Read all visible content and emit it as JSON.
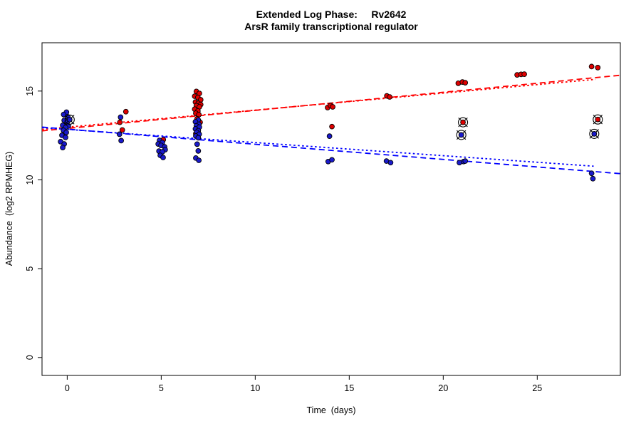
{
  "title": {
    "line1": "Extended Log Phase:     Rv2642",
    "line2": "ArsR family transcriptional regulator"
  },
  "chart_data": {
    "type": "scatter",
    "xlabel": "Time  (days)",
    "ylabel": "Abundance  (log2 RPMHEG)",
    "x_ticks": [
      0,
      5,
      10,
      15,
      20,
      25
    ],
    "y_ticks": [
      0,
      5,
      10,
      15
    ],
    "xlim": [
      -1.34,
      29.42
    ],
    "ylim": [
      -1.01,
      17.72
    ],
    "grid": false,
    "legend": "none",
    "colors": {
      "red_point": "#e00000",
      "blue_point": "#1a1acc",
      "red_line": "#ff0000",
      "blue_line": "#0000ff",
      "point_stroke": "#000000",
      "axis": "#000000"
    },
    "series": [
      {
        "name": "red-condition",
        "color_key": "red_point",
        "points": [
          [
            3.12,
            13.84
          ],
          [
            2.8,
            13.24
          ],
          [
            2.93,
            12.81
          ],
          [
            5.11,
            12.26
          ],
          [
            6.87,
            14.98
          ],
          [
            7.03,
            14.87
          ],
          [
            6.78,
            14.71
          ],
          [
            6.95,
            14.64
          ],
          [
            7.1,
            14.51
          ],
          [
            6.82,
            14.38
          ],
          [
            6.97,
            14.31
          ],
          [
            7.1,
            14.24
          ],
          [
            6.87,
            14.18
          ],
          [
            7.03,
            14.11
          ],
          [
            6.78,
            13.98
          ],
          [
            6.95,
            13.88
          ],
          [
            6.84,
            13.75
          ],
          [
            7.0,
            13.67
          ],
          [
            6.91,
            13.44
          ],
          [
            7.07,
            13.24
          ],
          [
            6.84,
            12.6
          ],
          [
            13.85,
            14.07
          ],
          [
            14.0,
            14.19
          ],
          [
            14.12,
            14.11
          ],
          [
            14.08,
            13.0
          ],
          [
            17.0,
            14.73
          ],
          [
            17.15,
            14.67
          ],
          [
            20.8,
            15.44
          ],
          [
            21.02,
            15.51
          ],
          [
            21.17,
            15.47
          ],
          [
            23.93,
            15.91
          ],
          [
            24.14,
            15.94
          ],
          [
            24.31,
            15.95
          ],
          [
            27.89,
            16.38
          ],
          [
            28.22,
            16.32
          ]
        ]
      },
      {
        "name": "blue-condition",
        "color_key": "blue_point",
        "points": [
          [
            -0.04,
            13.81
          ],
          [
            -0.19,
            13.68
          ],
          [
            0.03,
            13.55
          ],
          [
            -0.16,
            13.35
          ],
          [
            -0.01,
            13.23
          ],
          [
            -0.24,
            13.07
          ],
          [
            0.06,
            13.03
          ],
          [
            -0.09,
            12.95
          ],
          [
            -0.2,
            12.79
          ],
          [
            -0.05,
            12.67
          ],
          [
            -0.28,
            12.51
          ],
          [
            -0.09,
            12.39
          ],
          [
            -0.35,
            12.15
          ],
          [
            -0.16,
            12.02
          ],
          [
            -0.24,
            11.82
          ],
          [
            2.84,
            13.53
          ],
          [
            2.78,
            12.57
          ],
          [
            2.87,
            12.21
          ],
          [
            4.91,
            12.22
          ],
          [
            5.06,
            12.1
          ],
          [
            4.84,
            12.02
          ],
          [
            4.99,
            11.94
          ],
          [
            5.18,
            11.86
          ],
          [
            5.21,
            11.7
          ],
          [
            4.88,
            11.62
          ],
          [
            5.06,
            11.58
          ],
          [
            4.95,
            11.38
          ],
          [
            5.1,
            11.26
          ],
          [
            6.97,
            13.37
          ],
          [
            6.82,
            13.27
          ],
          [
            7.0,
            13.13
          ],
          [
            6.87,
            13.04
          ],
          [
            7.03,
            12.97
          ],
          [
            6.82,
            12.87
          ],
          [
            6.97,
            12.77
          ],
          [
            6.89,
            12.68
          ],
          [
            7.02,
            12.57
          ],
          [
            6.84,
            12.47
          ],
          [
            6.97,
            12.37
          ],
          [
            6.91,
            12.01
          ],
          [
            6.97,
            11.63
          ],
          [
            6.84,
            11.23
          ],
          [
            7.0,
            11.1
          ],
          [
            13.95,
            12.46
          ],
          [
            13.88,
            11.03
          ],
          [
            14.08,
            11.13
          ],
          [
            16.98,
            11.06
          ],
          [
            17.2,
            10.97
          ],
          [
            20.86,
            10.97
          ],
          [
            21.08,
            11.03
          ],
          [
            21.17,
            11.06
          ],
          [
            27.89,
            10.37
          ],
          [
            27.96,
            10.07
          ]
        ]
      }
    ],
    "outliers_circled": [
      {
        "x": 0.13,
        "y": 13.39,
        "series": 1
      },
      {
        "x": 21.05,
        "y": 13.24,
        "series": 0
      },
      {
        "x": 20.96,
        "y": 12.53,
        "series": 1
      },
      {
        "x": 28.22,
        "y": 13.4,
        "series": 0
      },
      {
        "x": 28.03,
        "y": 12.59,
        "series": 1
      }
    ],
    "trend_lines": [
      {
        "name": "red-fit-dashed",
        "color_key": "red_line",
        "style": "dashed",
        "x1": -1.34,
        "y1": 12.76,
        "x2": 29.42,
        "y2": 15.89
      },
      {
        "name": "red-fit-dotted",
        "color_key": "red_line",
        "style": "dotted",
        "x1": -1.34,
        "y1": 12.84,
        "x2": 28.1,
        "y2": 15.66
      },
      {
        "name": "blue-fit-dashed",
        "color_key": "blue_line",
        "style": "dashed",
        "x1": -1.34,
        "y1": 12.97,
        "x2": 29.42,
        "y2": 10.35
      },
      {
        "name": "blue-fit-dotted",
        "color_key": "blue_line",
        "style": "dotted",
        "x1": -1.34,
        "y1": 12.94,
        "x2": 28.0,
        "y2": 10.77
      }
    ]
  }
}
